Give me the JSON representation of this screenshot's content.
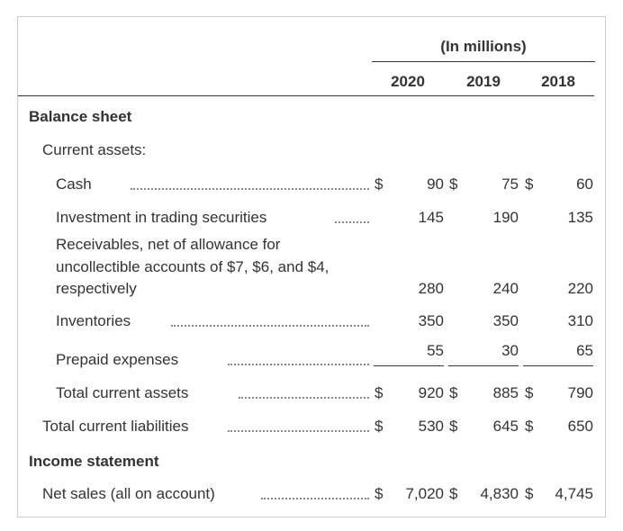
{
  "header": {
    "unit": "(In millions)",
    "years": [
      "2020",
      "2019",
      "2018"
    ]
  },
  "rows": [
    {
      "label": "Balance sheet"
    },
    {
      "label": "Current assets:"
    },
    {
      "label": "Cash",
      "values": [
        {
          "currency": "$",
          "amount": "90"
        },
        {
          "currency": "$",
          "amount": "75"
        },
        {
          "currency": "$",
          "amount": "60"
        }
      ]
    },
    {
      "label": "Investment in trading securities",
      "values": [
        {
          "amount": "145"
        },
        {
          "amount": "190"
        },
        {
          "amount": "135"
        }
      ]
    },
    {
      "label_lines": [
        "Receivables, net of allowance for",
        "uncollectible accounts of $7, $6, and $4,",
        "respectively"
      ],
      "values": [
        {
          "amount": "280"
        },
        {
          "amount": "240"
        },
        {
          "amount": "220"
        }
      ]
    },
    {
      "label": "Inventories",
      "values": [
        {
          "amount": "350"
        },
        {
          "amount": "350"
        },
        {
          "amount": "310"
        }
      ]
    },
    {
      "label": "Prepaid expenses",
      "values": [
        {
          "amount": "55"
        },
        {
          "amount": "30"
        },
        {
          "amount": "65"
        }
      ]
    },
    {
      "label": "Total current assets",
      "values": [
        {
          "currency": "$",
          "amount": "920"
        },
        {
          "currency": "$",
          "amount": "885"
        },
        {
          "currency": "$",
          "amount": "790"
        }
      ]
    },
    {
      "label": "Total current liabilities",
      "values": [
        {
          "currency": "$",
          "amount": "530"
        },
        {
          "currency": "$",
          "amount": "645"
        },
        {
          "currency": "$",
          "amount": "650"
        }
      ]
    },
    {
      "label": "Income statement"
    },
    {
      "label": "Net sales (all on account)",
      "values": [
        {
          "currency": "$",
          "amount": "7,020"
        },
        {
          "currency": "$",
          "amount": "4,830"
        },
        {
          "currency": "$",
          "amount": "4,745"
        }
      ]
    }
  ]
}
